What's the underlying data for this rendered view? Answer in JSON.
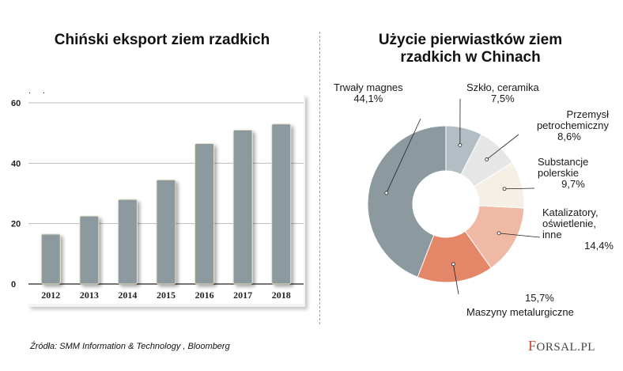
{
  "chart_data": [
    {
      "type": "bar",
      "title": "Chiński eksport ziem rzadkich",
      "ylabel": "tys. ton",
      "categories": [
        "2012",
        "2013",
        "2014",
        "2015",
        "2016",
        "2017",
        "2018"
      ],
      "values": [
        16.5,
        22.5,
        28,
        34.5,
        46.5,
        51,
        53
      ],
      "yticks": [
        0,
        20,
        40,
        60
      ],
      "ylim": [
        0,
        60
      ],
      "grid": true,
      "bar_color": "#8c9aa0"
    },
    {
      "type": "pie",
      "title": "Użycie  pierwiastków ziem rzadkich w Chinach",
      "donut": true,
      "slices": [
        {
          "label": "Szkło, ceramika",
          "value": 7.5,
          "value_label": "7,5%",
          "color": "#b3bec4"
        },
        {
          "label": "Przemysł petrochemiczny",
          "value": 8.6,
          "value_label": "8,6%",
          "color": "#e6e6e6"
        },
        {
          "label": "Substancje polerskie",
          "value": 9.7,
          "value_label": "9,7%",
          "color": "#f6efe6"
        },
        {
          "label": "Katalizatory, oświetlenie, inne",
          "value": 14.4,
          "value_label": "14,4%",
          "color": "#efb9a6"
        },
        {
          "label": "Maszyny metalurgiczne",
          "value": 15.7,
          "value_label": "15,7%",
          "color": "#e48768"
        },
        {
          "label": "Trwały magnes",
          "value": 44.1,
          "value_label": "44,1%",
          "color": "#8c9aa0"
        }
      ]
    }
  ],
  "pie_labels": {
    "szklo": {
      "line1": "Szkło, ceramika",
      "line2": "7,5%"
    },
    "petro": {
      "line1": "Przemysł",
      "line2": "petrochemiczny",
      "line3": "8,6%"
    },
    "poler": {
      "line1": "Substancje",
      "line2": "polerskie",
      "line3": "9,7%"
    },
    "katal": {
      "line1": "Katalizatory,",
      "line2": "oświetlenie,",
      "line3": "inne",
      "line4": "14,4%"
    },
    "maszyny": {
      "line1": "15,7%",
      "line2": "Maszyny metalurgiczne"
    },
    "magnes": {
      "line1": "Trwały magnes",
      "line2": "44,1%"
    }
  },
  "footer": {
    "source": "Źródła: SMM Information & Technology , Bloomberg",
    "logo_f": "F",
    "logo_rest": "ORSAL.PL"
  }
}
